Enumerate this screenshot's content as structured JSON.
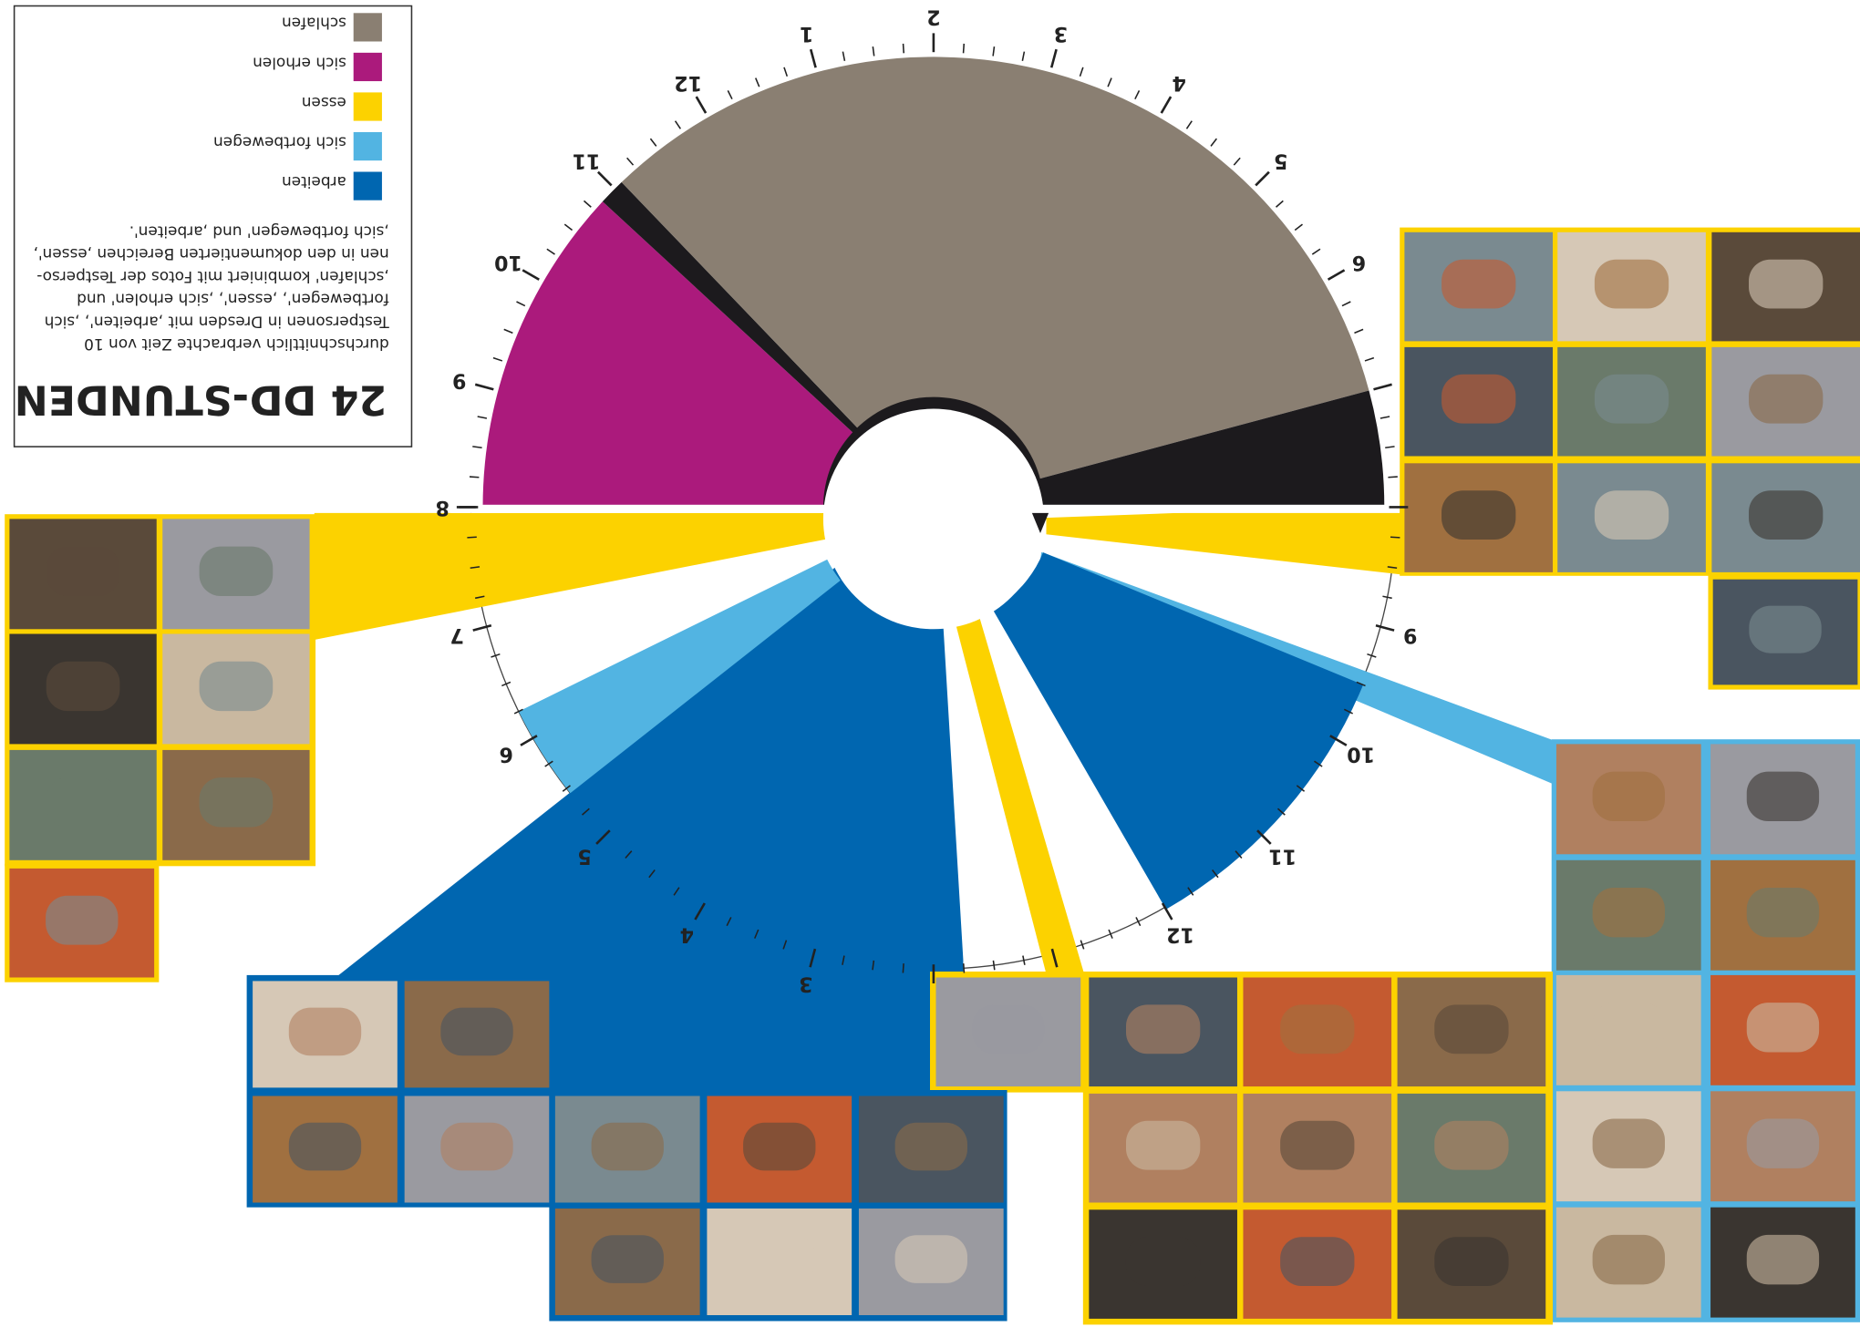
{
  "header": {
    "title": "24 DD-STUNDEN",
    "description": [
      "durchschnittlich verbrachte Zeit von 10",
      "Testpersonen in Dresden mit ‚arbeiten', ‚sich",
      "fortbewegen', ‚essen', ‚sich erholen' und",
      "‚schlafen' kombiniert mit Fotos der Testperso-",
      "nen in den dokumentierten Bereichen ‚essen',",
      "‚sich fortbewegen' und ‚arbeiten'."
    ]
  },
  "legend": [
    {
      "name": "arbeiten",
      "color": "#0066b0"
    },
    {
      "name": "sich fortbewegen",
      "color": "#52b4e2"
    },
    {
      "name": "essen",
      "color": "#fcd200"
    },
    {
      "name": "sich erholen",
      "color": "#ab1a7c"
    },
    {
      "name": "schlafen",
      "color": "#8a7f72"
    }
  ],
  "clock": {
    "night_labels": [
      "8",
      "9",
      "10",
      "11",
      "12",
      "1",
      "2",
      "3",
      "4",
      "5",
      "6"
    ],
    "day_labels": [
      "9",
      "10",
      "11",
      "12",
      "3",
      "4",
      "5",
      "6",
      "7"
    ]
  }
}
